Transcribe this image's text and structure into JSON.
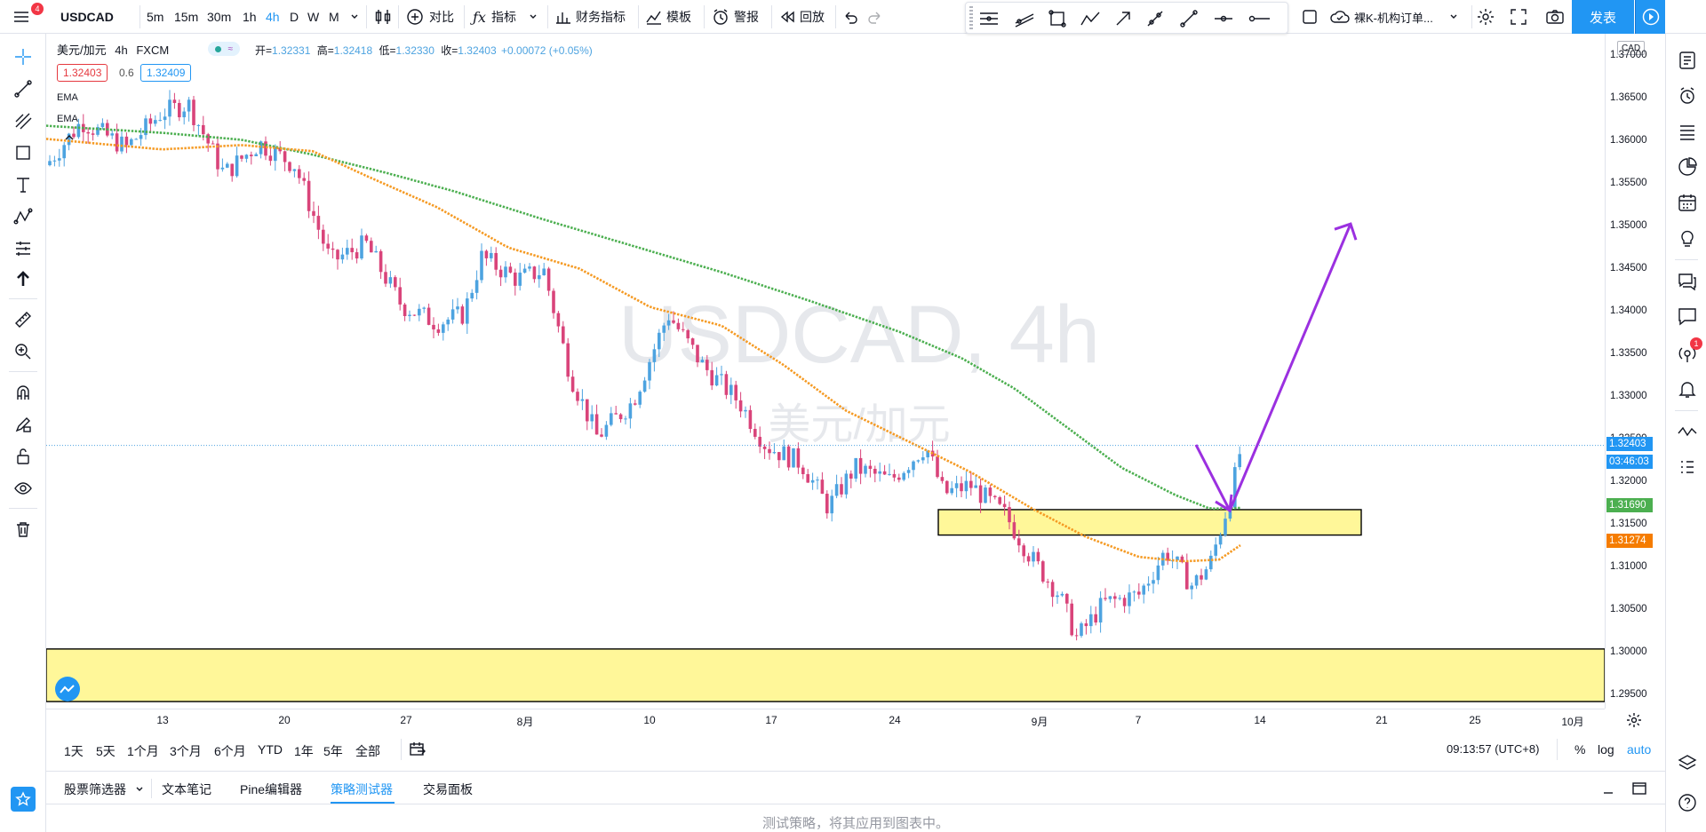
{
  "toolbar": {
    "symbol": "USDCAD",
    "notification_count": "4",
    "intervals": [
      "5m",
      "15m",
      "30m",
      "1h",
      "4h",
      "D",
      "W",
      "M"
    ],
    "compare_label": "对比",
    "indicators_label": "指标",
    "financials_label": "财务指标",
    "templates_label": "模板",
    "alert_label": "警报",
    "replay_label": "回放",
    "layout_label": "裸K-机构订单...",
    "publish_label": "发表"
  },
  "legend": {
    "pair": "美元/加元",
    "interval": "4h",
    "source": "FXCM",
    "open_label": "开=",
    "open": "1.32331",
    "high_label": "高=",
    "high": "1.32418",
    "low_label": "低=",
    "low": "1.32330",
    "close_label": "收=",
    "close": "1.32403",
    "change": "+0.00072 (+0.05%)",
    "bid": "1.32403",
    "spread": "0.6",
    "ask": "1.32409",
    "ema1": "EMA",
    "ema2": "EMA"
  },
  "watermark": {
    "title": "USDCAD, 4h",
    "subtitle": "美元/加元"
  },
  "price_axis": {
    "currency": "CAD",
    "labels": [
      "1.37000",
      "1.36500",
      "1.36000",
      "1.35500",
      "1.35000",
      "1.34500",
      "1.34000",
      "1.33500",
      "1.33000",
      "1.32500",
      "1.32000",
      "1.31500",
      "1.31000",
      "1.30500",
      "1.30000",
      "1.29500"
    ],
    "last_price": "1.32403",
    "countdown": "03:46:03",
    "ema_green": "1.31690",
    "ema_orange": "1.31274"
  },
  "time_axis": {
    "labels": [
      "13",
      "20",
      "27",
      "8月",
      "10",
      "17",
      "24",
      "9月",
      "7",
      "14",
      "21",
      "25",
      "10月"
    ]
  },
  "ranges": [
    "1天",
    "5天",
    "1个月",
    "3个月",
    "6个月",
    "YTD",
    "1年",
    "5年",
    "全部"
  ],
  "clock": "09:13:57 (UTC+8)",
  "scale_options": [
    "%",
    "log",
    "auto"
  ],
  "bottom_tabs": [
    "股票筛选器",
    "文本笔记",
    "Pine编辑器",
    "策略测试器",
    "交易面板"
  ],
  "strategy_hint": "测试策略，将其应用到图表中。",
  "colors": {
    "up": "#4da3e0",
    "down": "#d9447a",
    "ema_green": "#4caf50",
    "ema_orange": "#f59a23",
    "zone": "#fff799",
    "arrow": "#9b30e0",
    "accent": "#2196f3"
  },
  "chart_data": {
    "type": "candlestick",
    "symbol": "USDCAD",
    "interval": "4h",
    "y_range": [
      1.294,
      1.371
    ],
    "indicators": [
      "EMA",
      "EMA"
    ],
    "last": 1.32403,
    "ema_green_last": 1.3169,
    "ema_orange_last": 1.31274,
    "zones": [
      {
        "from": 1.3138,
        "to": 1.3167
      },
      {
        "from": 1.2948,
        "to": 1.3008
      }
    ],
    "projection": [
      1.3241,
      1.3166,
      1.3493
    ]
  }
}
